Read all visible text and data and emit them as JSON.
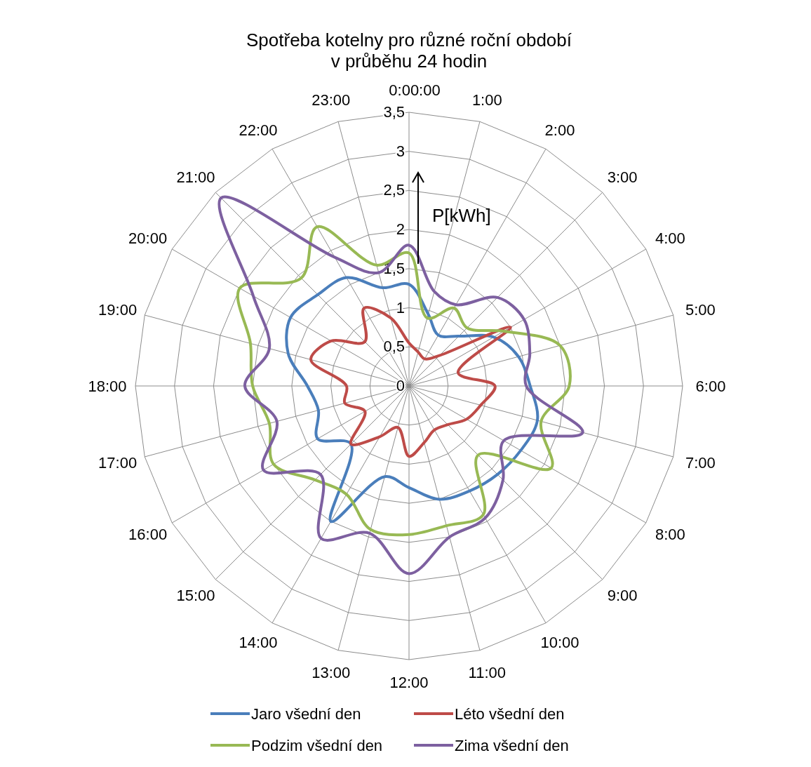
{
  "chart_data": {
    "type": "radar",
    "title": "Spotřeba kotelny pro různé roční období\nv průběhu 24 hodin",
    "categories": [
      "0:00:00",
      "1:00",
      "2:00",
      "3:00",
      "4:00",
      "5:00",
      "6:00",
      "7:00",
      "8:00",
      "9:00",
      "10:00",
      "11:00",
      "12:00",
      "13:00",
      "14:00",
      "15:00",
      "16:00",
      "17:00",
      "18:00",
      "19:00",
      "20:00",
      "21:00",
      "22:00",
      "23:00"
    ],
    "series": [
      {
        "name": "Jaro všední den",
        "color": "#4a7ebb",
        "values": [
          1.3,
          0.95,
          0.75,
          0.9,
          1.25,
          1.45,
          1.55,
          1.7,
          1.65,
          1.6,
          1.55,
          1.5,
          1.3,
          1.2,
          2.0,
          1.05,
          1.35,
          1.2,
          1.3,
          1.6,
          1.75,
          1.65,
          1.6,
          1.3
        ]
      },
      {
        "name": "Léto všední den",
        "color": "#be4b48",
        "values": [
          0.55,
          0.45,
          0.4,
          0.55,
          1.5,
          0.65,
          1.1,
          0.95,
          0.85,
          0.7,
          0.65,
          0.75,
          0.9,
          0.55,
          0.75,
          1.05,
          0.65,
          0.85,
          0.8,
          1.3,
          1.15,
          0.8,
          1.15,
          0.9
        ]
      },
      {
        "name": "Podzim všední den",
        "color": "#98b954",
        "values": [
          1.7,
          0.9,
          1.15,
          1.05,
          1.4,
          2.0,
          2.05,
          1.75,
          2.1,
          1.25,
          1.9,
          1.85,
          1.9,
          1.9,
          1.6,
          1.7,
          2.0,
          1.85,
          2.0,
          2.1,
          2.5,
          1.95,
          2.35,
          1.6
        ]
      },
      {
        "name": "Zima všední den",
        "color": "#7d60a0",
        "values": [
          1.8,
          1.25,
          1.2,
          1.6,
          1.7,
          1.6,
          1.5,
          2.3,
          1.4,
          1.7,
          1.95,
          2.0,
          2.4,
          1.95,
          2.25,
          1.6,
          2.15,
          1.75,
          2.1,
          1.85,
          2.3,
          3.4,
          1.9,
          1.5
        ]
      }
    ],
    "ylim": [
      0,
      3.5
    ],
    "yticks": [
      0,
      {
        "value": 0.5,
        "label": "0,5"
      },
      1,
      {
        "value": 1.5,
        "label": "1,5"
      },
      2,
      {
        "value": 2.5,
        "label": "2,5"
      },
      3,
      {
        "value": 3.5,
        "label": "3,5"
      }
    ],
    "grid": true,
    "legend": "bottom",
    "annotations": [
      "P[kWh]"
    ]
  }
}
